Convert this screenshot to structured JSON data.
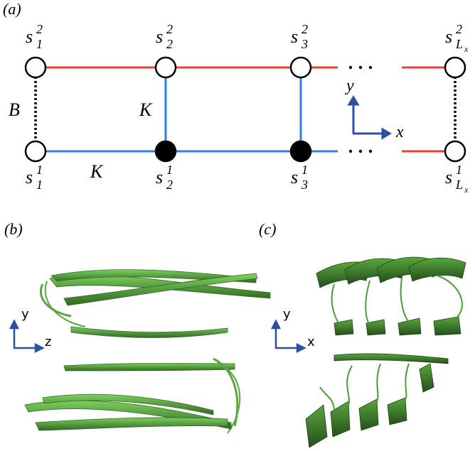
{
  "panels": {
    "a": {
      "label": "(a)",
      "top_nodes": [
        {
          "sym": "s",
          "sub": "1",
          "sup": "2"
        },
        {
          "sym": "s",
          "sub": "2",
          "sup": "2"
        },
        {
          "sym": "s",
          "sub": "3",
          "sup": "2"
        },
        {
          "sym": "s",
          "sub": "L",
          "subsub": "x",
          "sup": "2"
        }
      ],
      "bottom_nodes": [
        {
          "sym": "s",
          "sub": "1",
          "sup": "1"
        },
        {
          "sym": "s",
          "sub": "2",
          "sup": "1"
        },
        {
          "sym": "s",
          "sub": "3",
          "sup": "1"
        },
        {
          "sym": "s",
          "sub": "L",
          "subsub": "x",
          "sup": "1"
        }
      ],
      "couplings": {
        "rung": "B",
        "vertical": "K",
        "horizontal": "K"
      },
      "axes": {
        "y": "y",
        "x": "x"
      }
    },
    "b": {
      "label": "(b)",
      "axes": {
        "y": "y",
        "z": "z"
      }
    },
    "c": {
      "label": "(c)",
      "axes": {
        "y": "y",
        "x": "x"
      }
    }
  }
}
